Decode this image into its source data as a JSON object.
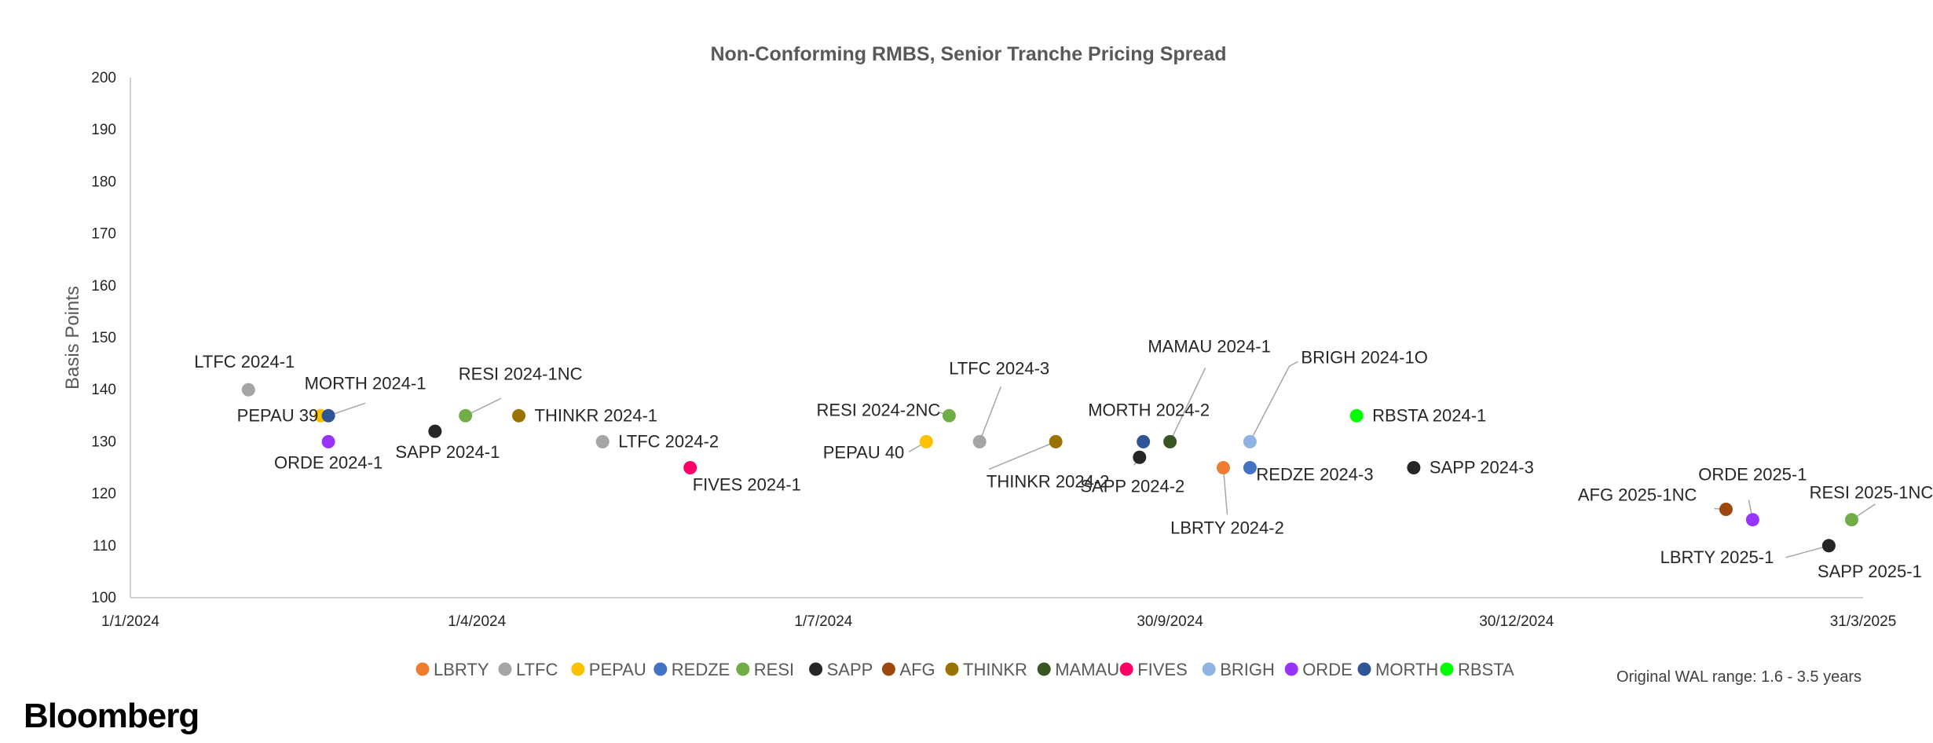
{
  "brand": {
    "logo_text": "Bloomberg"
  },
  "chart_data": {
    "type": "scatter",
    "title": "Non-Conforming RMBS, Senior Tranche Pricing Spread",
    "xlabel": "",
    "ylabel": "Basis Points",
    "ylim": [
      100,
      200
    ],
    "yticks": [
      100,
      110,
      120,
      130,
      140,
      150,
      160,
      170,
      180,
      190,
      200
    ],
    "xlim": [
      "2024-01-01",
      "2025-03-31"
    ],
    "xticks": [
      {
        "date": "2024-01-01",
        "label": "1/1/2024"
      },
      {
        "date": "2024-04-01",
        "label": "1/4/2024"
      },
      {
        "date": "2024-07-01",
        "label": "1/7/2024"
      },
      {
        "date": "2024-09-30",
        "label": "30/9/2024"
      },
      {
        "date": "2024-12-30",
        "label": "30/12/2024"
      },
      {
        "date": "2025-03-31",
        "label": "31/3/2025"
      }
    ],
    "grid": false,
    "legend_position": "bottom",
    "note": "Original WAL range: 1.6 - 3.5 years",
    "series": [
      {
        "name": "LBRTY",
        "color": "#ed7d31"
      },
      {
        "name": "LTFC",
        "color": "#a5a5a5"
      },
      {
        "name": "PEPAU",
        "color": "#ffc000"
      },
      {
        "name": "REDZE",
        "color": "#4472c4"
      },
      {
        "name": "RESI",
        "color": "#70ad47"
      },
      {
        "name": "SAPP",
        "color": "#262626"
      },
      {
        "name": "AFG",
        "color": "#9e480e"
      },
      {
        "name": "THINKR",
        "color": "#997300"
      },
      {
        "name": "MAMAU",
        "color": "#375623"
      },
      {
        "name": "FIVES",
        "color": "#ff0066"
      },
      {
        "name": "BRIGH",
        "color": "#8fb4e3"
      },
      {
        "name": "ORDE",
        "color": "#9933ff"
      },
      {
        "name": "MORTH",
        "color": "#2f5597"
      },
      {
        "name": "RBSTA",
        "color": "#00ff00"
      }
    ],
    "points": [
      {
        "series": "LTFC",
        "label": "LTFC 2024-1",
        "x": "2024-02-01",
        "y": 140
      },
      {
        "series": "PEPAU",
        "label": "PEPAU 39",
        "x": "2024-02-20",
        "y": 135
      },
      {
        "series": "MORTH",
        "label": "MORTH 2024-1",
        "x": "2024-02-22",
        "y": 135
      },
      {
        "series": "ORDE",
        "label": "ORDE 2024-1",
        "x": "2024-02-22",
        "y": 130
      },
      {
        "series": "SAPP",
        "label": "SAPP 2024-1",
        "x": "2024-03-21",
        "y": 132
      },
      {
        "series": "RESI",
        "label": "RESI 2024-1NC",
        "x": "2024-03-29",
        "y": 135
      },
      {
        "series": "THINKR",
        "label": "THINKR 2024-1",
        "x": "2024-04-12",
        "y": 135
      },
      {
        "series": "LTFC",
        "label": "LTFC 2024-2",
        "x": "2024-04-34",
        "y": 130
      },
      {
        "series": "FIVES",
        "label": "FIVES 2024-1",
        "x": "2024-05-27",
        "y": 125
      },
      {
        "series": "PEPAU",
        "label": "PEPAU 40",
        "x": "2024-07-28",
        "y": 130
      },
      {
        "series": "RESI",
        "label": "RESI 2024-2NC",
        "x": "2024-08-03",
        "y": 135
      },
      {
        "series": "LTFC",
        "label": "LTFC 2024-3",
        "x": "2024-08-11",
        "y": 130
      },
      {
        "series": "THINKR",
        "label": "THINKR 2024-2",
        "x": "2024-08-31",
        "y": 130
      },
      {
        "series": "SAPP",
        "label": "SAPP 2024-2",
        "x": "2024-09-22",
        "y": 127
      },
      {
        "series": "MORTH",
        "label": "MORTH 2024-2",
        "x": "2024-09-23",
        "y": 130
      },
      {
        "series": "MAMAU",
        "label": "MAMAU 2024-1",
        "x": "2024-09-30",
        "y": 130
      },
      {
        "series": "LBRTY",
        "label": "LBRTY 2024-2",
        "x": "2024-10-14",
        "y": 125
      },
      {
        "series": "BRIGH",
        "label": "BRIGH 2024-1O",
        "x": "2024-10-21",
        "y": 130
      },
      {
        "series": "REDZE",
        "label": "REDZE 2024-3",
        "x": "2024-10-21",
        "y": 125
      },
      {
        "series": "RBSTA",
        "label": "RBSTA 2024-1",
        "x": "2024-11-18",
        "y": 135
      },
      {
        "series": "SAPP",
        "label": "SAPP 2024-3",
        "x": "2024-12-03",
        "y": 125
      },
      {
        "series": "AFG",
        "label": "AFG 2025-1NC",
        "x": "2025-02-23",
        "y": 117
      },
      {
        "series": "ORDE",
        "label": "ORDE 2025-1",
        "x": "2025-03-02",
        "y": 115
      },
      {
        "series": "LBRTY",
        "label": "LBRTY 2025-1",
        "x": "2025-03-22",
        "y": 110
      },
      {
        "series": "SAPP",
        "label": "SAPP 2025-1",
        "x": "2025-03-22",
        "y": 110
      },
      {
        "series": "RESI",
        "label": "RESI 2025-1NC",
        "x": "2025-03-28",
        "y": 115
      }
    ]
  }
}
